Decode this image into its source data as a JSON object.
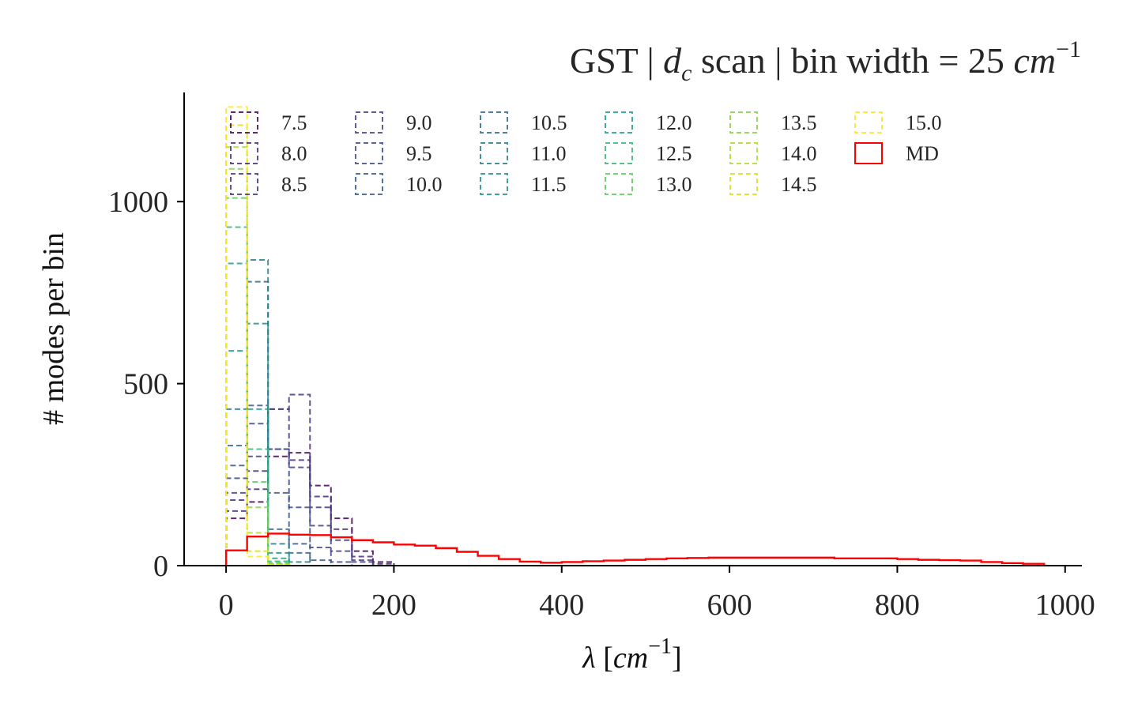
{
  "chart_data": {
    "type": "histogram",
    "title": "GST | d_c scan | bin width = 25 cm^-1",
    "title_parts": {
      "prefix": "GST | ",
      "symbol": "d",
      "symbol_sub": "c",
      "middle": " scan | bin width = 25 ",
      "unit": "cm",
      "unit_exp": "−1"
    },
    "xlabel": "λ [cm^-1]",
    "xlabel_parts": {
      "symbol": "λ",
      "open": " [",
      "unit": "cm",
      "unit_exp": "−1",
      "close": "]"
    },
    "ylabel": "# modes per bin",
    "xlim": [
      -50,
      1020
    ],
    "ylim": [
      0,
      1300
    ],
    "x_ticks": [
      0,
      200,
      400,
      600,
      800,
      1000
    ],
    "y_ticks": [
      0,
      500,
      1000
    ],
    "bin_width": 25,
    "legend_position": "top",
    "legend_columns": 7,
    "series": [
      {
        "name": "7.5",
        "color": "#440154",
        "dashed": true,
        "values": [
          130,
          175,
          300,
          310,
          220,
          130,
          40,
          10
        ]
      },
      {
        "name": "8.0",
        "color": "#472d7b",
        "dashed": true,
        "values": [
          150,
          210,
          320,
          290,
          190,
          100,
          25,
          5
        ]
      },
      {
        "name": "8.5",
        "color": "#46337e",
        "dashed": true,
        "values": [
          180,
          260,
          430,
          470,
          160,
          70,
          15
        ]
      },
      {
        "name": "9.0",
        "color": "#433e85",
        "dashed": true,
        "values": [
          200,
          300,
          430,
          270,
          110,
          40,
          10
        ]
      },
      {
        "name": "9.5",
        "color": "#3e4989",
        "dashed": true,
        "values": [
          240,
          390,
          320,
          160,
          50,
          10
        ]
      },
      {
        "name": "10.0",
        "color": "#38588c",
        "dashed": true,
        "values": [
          275,
          440,
          200,
          60,
          15
        ]
      },
      {
        "name": "10.5",
        "color": "#31688e",
        "dashed": true,
        "values": [
          330,
          780,
          100,
          35
        ]
      },
      {
        "name": "11.0",
        "color": "#287c8e",
        "dashed": true,
        "values": [
          430,
          840,
          60,
          10
        ]
      },
      {
        "name": "11.5",
        "color": "#21918c",
        "dashed": true,
        "values": [
          590,
          665,
          35
        ]
      },
      {
        "name": "12.0",
        "color": "#1fa088",
        "dashed": true,
        "values": [
          830,
          430,
          20
        ]
      },
      {
        "name": "12.5",
        "color": "#35b779",
        "dashed": true,
        "values": [
          930,
          320,
          12
        ]
      },
      {
        "name": "13.0",
        "color": "#5ec962",
        "dashed": true,
        "values": [
          1010,
          230,
          8
        ]
      },
      {
        "name": "13.5",
        "color": "#84d44b",
        "dashed": true,
        "values": [
          1090,
          160,
          5
        ]
      },
      {
        "name": "14.0",
        "color": "#addc30",
        "dashed": true,
        "values": [
          1150,
          90,
          3
        ]
      },
      {
        "name": "14.5",
        "color": "#d8e219",
        "dashed": true,
        "values": [
          1210,
          40,
          2
        ]
      },
      {
        "name": "15.0",
        "color": "#fde725",
        "dashed": true,
        "values": [
          1260,
          25,
          0
        ]
      },
      {
        "name": "MD",
        "color": "#ff0000",
        "dashed": false,
        "values": [
          42,
          80,
          88,
          85,
          84,
          78,
          70,
          64,
          58,
          55,
          48,
          38,
          27,
          18,
          11,
          8,
          10,
          12,
          14,
          16,
          18,
          20,
          21,
          22,
          22,
          22,
          22,
          22,
          22,
          20,
          20,
          20,
          18,
          16,
          15,
          14,
          10,
          7,
          5
        ]
      }
    ]
  }
}
